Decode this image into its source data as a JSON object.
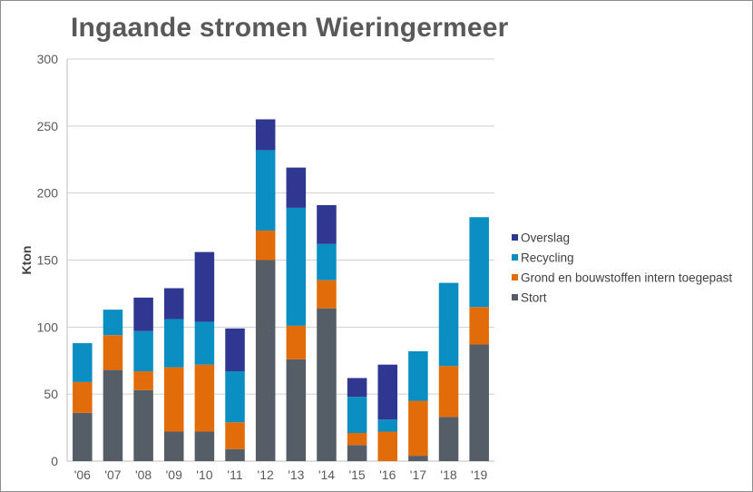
{
  "chart_data": {
    "type": "bar",
    "stacked": true,
    "title": "Ingaande stromen Wieringermeer",
    "xlabel": "",
    "ylabel": "Kton",
    "ylim": [
      0,
      300
    ],
    "yticks": [
      0,
      50,
      100,
      150,
      200,
      250,
      300
    ],
    "grid": true,
    "legend_position": "right",
    "categories": [
      "'06",
      "'07",
      "'08",
      "'09",
      "'10",
      "'11",
      "'12",
      "'13",
      "'14",
      "'15",
      "'16",
      "'17",
      "'18",
      "'19"
    ],
    "series": [
      {
        "name": "Stort",
        "color": "#555d66",
        "values": [
          36,
          68,
          53,
          22,
          22,
          9,
          150,
          76,
          114,
          12,
          0,
          4,
          33,
          87
        ]
      },
      {
        "name": "Grond en bouwstoffen intern toegepast",
        "color": "#e36c0a",
        "values": [
          23,
          26,
          14,
          48,
          50,
          20,
          22,
          25,
          21,
          9,
          22,
          41,
          38,
          28
        ]
      },
      {
        "name": "Recycling",
        "color": "#0b8ec2",
        "values": [
          29,
          19,
          30,
          36,
          32,
          38,
          60,
          88,
          27,
          27,
          9,
          37,
          62,
          67
        ]
      },
      {
        "name": "Overslag",
        "color": "#2f3790",
        "values": [
          0,
          0,
          25,
          23,
          52,
          32,
          23,
          30,
          29,
          14,
          41,
          0,
          0,
          0
        ]
      }
    ],
    "legend_order": [
      "Overslag",
      "Recycling",
      "Grond en bouwstoffen intern toegepast",
      "Stort"
    ]
  }
}
